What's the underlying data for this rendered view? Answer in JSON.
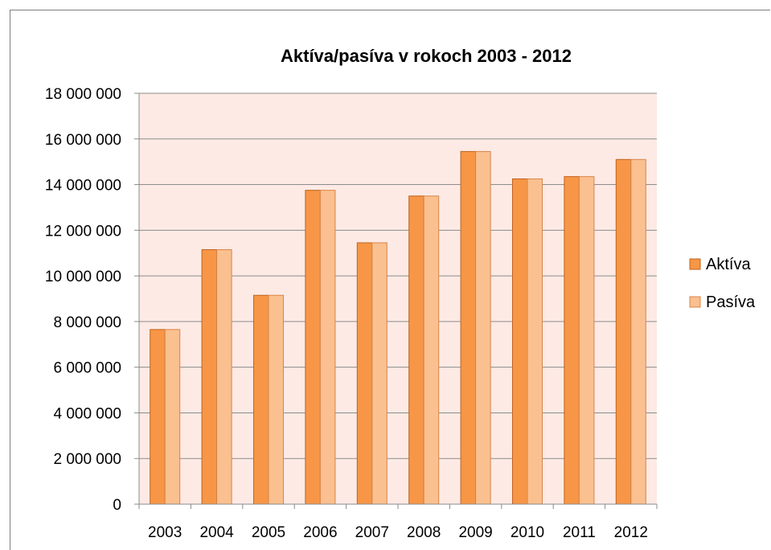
{
  "colors": {
    "plot_background": "#fdeae5",
    "gridline": "#8c8c8c",
    "axis": "#8c8c8c",
    "aktiva_fill": "#f79646",
    "aktiva_edge": "#c0631e",
    "pasiva_fill": "#fac08f",
    "pasiva_edge": "#d9844a",
    "frame_border": "#7f7f7f"
  },
  "chart_data": {
    "type": "bar",
    "title": "Aktíva/pasíva v rokoch 2003 - 2012",
    "xlabel": "",
    "ylabel": "",
    "categories": [
      "2003",
      "2004",
      "2005",
      "2006",
      "2007",
      "2008",
      "2009",
      "2010",
      "2011",
      "2012"
    ],
    "series": [
      {
        "name": "Aktíva",
        "values": [
          7650000,
          11150000,
          9150000,
          13750000,
          11450000,
          13500000,
          15450000,
          14250000,
          14350000,
          15100000
        ]
      },
      {
        "name": "Pasíva",
        "values": [
          7650000,
          11150000,
          9150000,
          13750000,
          11450000,
          13500000,
          15450000,
          14250000,
          14350000,
          15100000
        ]
      }
    ],
    "ylim": [
      0,
      18000000
    ],
    "yticks": [
      0,
      2000000,
      4000000,
      6000000,
      8000000,
      10000000,
      12000000,
      14000000,
      16000000,
      18000000
    ],
    "ytick_labels": [
      "0",
      "2 000 000",
      "4 000 000",
      "6 000 000",
      "8 000 000",
      "10 000 000",
      "12 000 000",
      "14 000 000",
      "16 000 000",
      "18 000 000"
    ],
    "grid": true,
    "legend_position": "right"
  }
}
